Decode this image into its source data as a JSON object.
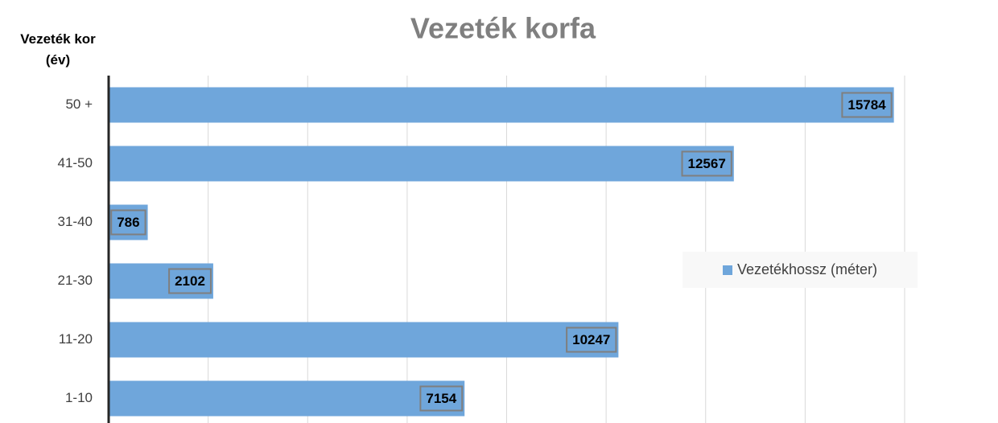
{
  "chart_data": {
    "type": "bar",
    "orientation": "horizontal",
    "title": "Vezeték korfa",
    "y_label": "Vezeték kor (év)",
    "categories": [
      "50 +",
      "41-50",
      "31-40",
      "21-30",
      "11-20",
      "1-10"
    ],
    "series": [
      {
        "name": "Vezetékhossz (méter)",
        "color": "#6fa6db",
        "values": [
          15784,
          12567,
          786,
          2102,
          10247,
          7154
        ]
      }
    ],
    "xlim": [
      0,
      16000
    ],
    "xticks": [
      0,
      2000,
      4000,
      6000,
      8000,
      10000,
      12000,
      14000,
      16000
    ],
    "grid": true,
    "legend": "right"
  }
}
